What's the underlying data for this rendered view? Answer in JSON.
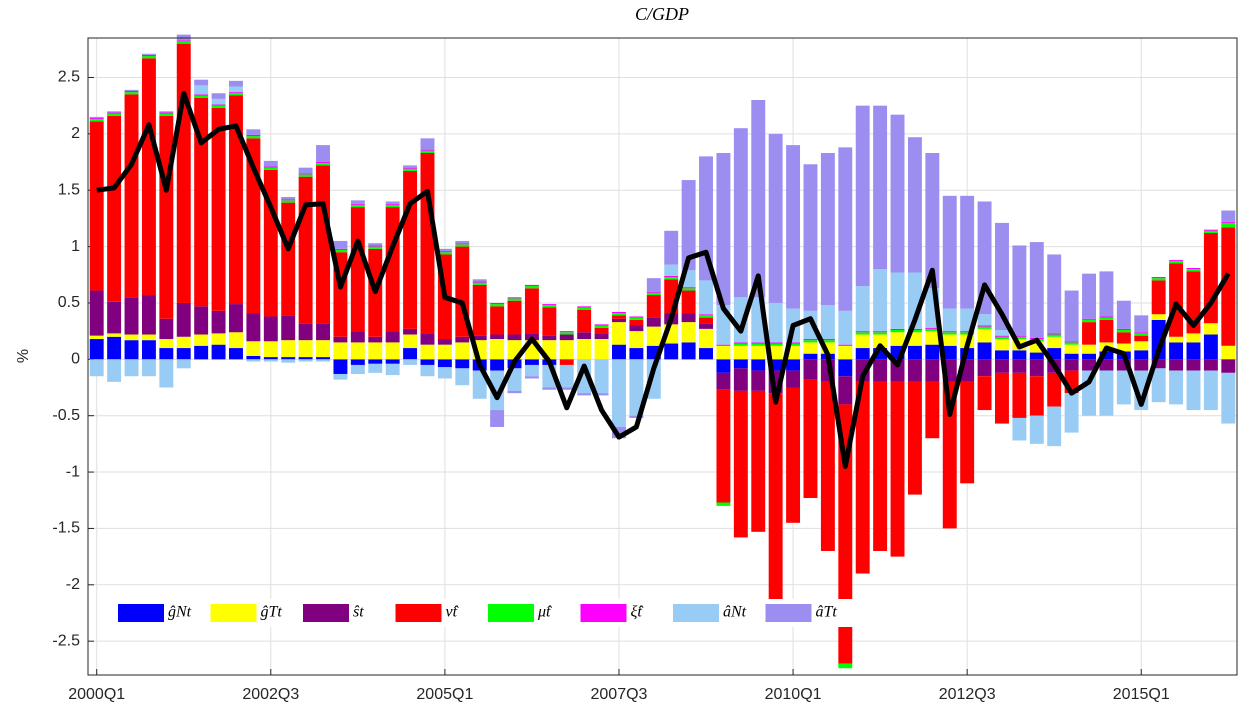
{
  "chart_data": {
    "type": "stacked-bar-line",
    "title": "C/GDP",
    "y_label": "%",
    "categories": [
      "2000Q1",
      null,
      null,
      null,
      null,
      null,
      null,
      null,
      null,
      null,
      "2002Q3",
      null,
      null,
      null,
      null,
      null,
      null,
      null,
      null,
      null,
      "2005Q1",
      null,
      null,
      null,
      null,
      null,
      null,
      null,
      null,
      null,
      "2007Q3",
      null,
      null,
      null,
      null,
      null,
      null,
      null,
      null,
      null,
      "2010Q1",
      null,
      null,
      null,
      null,
      null,
      null,
      null,
      null,
      null,
      "2012Q3",
      null,
      null,
      null,
      null,
      null,
      null,
      null,
      null,
      null,
      "2015Q1",
      null,
      null,
      null,
      null,
      null
    ],
    "ylim": [
      -2.8,
      2.85
    ],
    "yticks": [
      -2.5,
      -2,
      -1.5,
      -1,
      -0.5,
      0,
      0.5,
      1,
      1.5,
      2,
      2.5
    ],
    "grid": true,
    "legend": "lower left",
    "series": [
      {
        "name": "ĝNt",
        "color": "#0000ff",
        "values": [
          0.18,
          0.2,
          0.17,
          0.17,
          0.1,
          0.1,
          0.12,
          0.13,
          0.1,
          0.03,
          0.02,
          0.02,
          0.02,
          0.02,
          -0.13,
          -0.05,
          -0.04,
          -0.04,
          0.1,
          -0.05,
          -0.07,
          -0.08,
          -0.1,
          -0.1,
          -0.08,
          -0.05,
          -0.05,
          0,
          0,
          0,
          0.13,
          0.1,
          0.12,
          0.14,
          0.15,
          0.1,
          -0.12,
          -0.08,
          -0.1,
          -0.1,
          -0.1,
          0.05,
          0.05,
          -0.15,
          0.1,
          0.1,
          0.12,
          0.12,
          0.13,
          0.12,
          0.1,
          0.15,
          0.08,
          0.08,
          0.06,
          0.1,
          0.05,
          0.05,
          0.07,
          0.07,
          0.08,
          0.35,
          0.15,
          0.15,
          0.22,
          0
        ]
      },
      {
        "name": "ĝTt",
        "color": "#ffff00",
        "values": [
          0.03,
          0.03,
          0.05,
          0.05,
          0.08,
          0.1,
          0.1,
          0.1,
          0.14,
          0.13,
          0.14,
          0.15,
          0.15,
          0.15,
          0.15,
          0.15,
          0.15,
          0.15,
          0.12,
          0.13,
          0.13,
          0.15,
          0.17,
          0.18,
          0.17,
          0.17,
          0.17,
          0.17,
          0.18,
          0.18,
          0.2,
          0.15,
          0.17,
          0.17,
          0.18,
          0.17,
          0.12,
          0.12,
          0.12,
          0.12,
          0.12,
          0.1,
          0.1,
          0.12,
          0.12,
          0.12,
          0.12,
          0.12,
          0.12,
          0.1,
          0.12,
          0.12,
          0.1,
          0.1,
          0.1,
          0.1,
          0.08,
          0.08,
          0.08,
          0.07,
          0.08,
          0.05,
          0.05,
          0.08,
          0.1,
          0.12
        ]
      },
      {
        "name": "ŝt",
        "color": "#800080",
        "values": [
          0.4,
          0.28,
          0.33,
          0.35,
          0.18,
          0.3,
          0.25,
          0.2,
          0.25,
          0.25,
          0.22,
          0.22,
          0.15,
          0.15,
          0.05,
          0.1,
          0.05,
          0.1,
          0.05,
          0.1,
          0.05,
          0.05,
          0.04,
          0.04,
          0.05,
          0.06,
          0.04,
          0.05,
          0.06,
          0.05,
          0.03,
          0.05,
          0.08,
          0.1,
          0.08,
          0.05,
          -0.15,
          -0.2,
          -0.18,
          -0.2,
          -0.15,
          -0.18,
          -0.2,
          -0.25,
          -0.2,
          -0.2,
          -0.2,
          -0.2,
          -0.2,
          -0.2,
          -0.2,
          -0.15,
          -0.12,
          -0.12,
          -0.15,
          -0.12,
          -0.1,
          -0.1,
          -0.1,
          -0.1,
          -0.1,
          -0.08,
          -0.1,
          -0.1,
          -0.1,
          -0.12
        ]
      },
      {
        "name": "ν̂t",
        "color": "#ff0000",
        "values": [
          1.5,
          1.65,
          1.8,
          2.1,
          1.8,
          2.3,
          1.85,
          1.8,
          1.85,
          1.55,
          1.3,
          1.0,
          1.3,
          1.4,
          0.75,
          1.1,
          0.78,
          1.1,
          1.4,
          1.6,
          0.75,
          0.8,
          0.45,
          0.25,
          0.3,
          0.4,
          0.25,
          -0.05,
          0.2,
          0.05,
          0.03,
          0.05,
          0.2,
          0.3,
          0.2,
          0.05,
          -1.0,
          -1.3,
          -1.25,
          -1.9,
          -1.2,
          -1.05,
          -1.5,
          -2.3,
          -1.7,
          -1.5,
          -1.55,
          -1.0,
          -0.5,
          -1.3,
          -0.9,
          -0.3,
          -0.45,
          -0.4,
          -0.35,
          -0.3,
          -0.2,
          0.2,
          0.2,
          0.1,
          0.05,
          0.3,
          0.65,
          0.55,
          0.8,
          1.05
        ]
      },
      {
        "name": "μ̂t",
        "color": "#00ff00",
        "values": [
          0.02,
          0.02,
          0.02,
          0.02,
          0.02,
          0.02,
          0.02,
          0.02,
          0.02,
          0.02,
          0.02,
          0.02,
          0.02,
          0.02,
          0.02,
          0.02,
          0.02,
          0.02,
          0.02,
          0.02,
          0.02,
          0.02,
          0.02,
          0.02,
          0.02,
          0.02,
          0.02,
          0.02,
          0.02,
          0.02,
          0.02,
          0.02,
          0.02,
          0.02,
          0.02,
          0.02,
          -0.03,
          0.02,
          0.02,
          0.02,
          0.02,
          0.02,
          0.02,
          -0.04,
          0.02,
          0.02,
          0.02,
          0.02,
          0.02,
          0.02,
          0.02,
          0.02,
          0.02,
          0.02,
          0.02,
          0.02,
          0.02,
          0.02,
          0.02,
          0.02,
          0.02,
          0.02,
          0.02,
          0.02,
          0.02,
          0.04
        ]
      },
      {
        "name": "ξ̂t",
        "color": "#ff00ff",
        "values": [
          0.01,
          0.01,
          0.01,
          0.01,
          0.01,
          0.01,
          0.01,
          0.01,
          0.01,
          0.01,
          0.01,
          0.01,
          0.01,
          0.01,
          0.01,
          0.01,
          0.01,
          0.01,
          0.01,
          0.01,
          0.01,
          0.01,
          0.01,
          0.01,
          0.01,
          0.01,
          0.01,
          0.01,
          0.01,
          0.01,
          0.01,
          0.01,
          0.01,
          0.01,
          0.01,
          0.01,
          0.01,
          0.01,
          0.01,
          0.01,
          0.01,
          0.01,
          0.01,
          0.01,
          0.01,
          0.01,
          0.01,
          0.01,
          0.01,
          0.01,
          0.01,
          0.01,
          0.01,
          0.01,
          0.01,
          0.01,
          0.01,
          0.01,
          0.01,
          0.01,
          0.01,
          0.01,
          0.01,
          0.01,
          0.01,
          0.01
        ]
      },
      {
        "name": "âNt",
        "color": "#99ccf5",
        "values": [
          -0.15,
          -0.2,
          -0.15,
          -0.15,
          -0.25,
          -0.08,
          0.08,
          0.05,
          0.05,
          -0.02,
          -0.02,
          -0.03,
          -0.02,
          -0.02,
          -0.05,
          -0.08,
          -0.08,
          -0.1,
          -0.05,
          -0.1,
          -0.1,
          -0.15,
          -0.25,
          -0.35,
          -0.2,
          -0.1,
          -0.2,
          -0.2,
          -0.3,
          -0.3,
          -0.6,
          -0.5,
          -0.35,
          0.1,
          0.15,
          0.3,
          0.35,
          0.4,
          0.4,
          0.35,
          0.3,
          0.25,
          0.3,
          0.3,
          0.4,
          0.55,
          0.5,
          0.5,
          0.35,
          0.2,
          0.2,
          0.1,
          0.05,
          -0.2,
          -0.25,
          -0.35,
          -0.35,
          -0.4,
          -0.4,
          -0.3,
          -0.35,
          -0.3,
          -0.3,
          -0.35,
          -0.35,
          -0.45
        ]
      },
      {
        "name": "âTt",
        "color": "#9b8ef0",
        "values": [
          0.01,
          0.01,
          0.01,
          0.01,
          0.01,
          0.05,
          0.05,
          0.05,
          0.05,
          0.05,
          0.05,
          0.02,
          0.05,
          0.15,
          0.07,
          0.03,
          0.02,
          0.02,
          0.02,
          0.1,
          0.02,
          0.02,
          0.02,
          -0.15,
          -0.02,
          -0.02,
          -0.02,
          -0.02,
          -0.02,
          -0.02,
          -0.1,
          -0.02,
          0.12,
          0.3,
          0.8,
          1.1,
          1.35,
          1.5,
          1.75,
          1.5,
          1.45,
          1.3,
          1.35,
          1.45,
          1.6,
          1.45,
          1.4,
          1.2,
          1.2,
          1.0,
          1.0,
          1.0,
          0.95,
          0.8,
          0.85,
          0.7,
          0.45,
          0.4,
          0.4,
          0.25,
          0.15,
          0,
          0,
          0,
          0,
          0.1
        ]
      }
    ],
    "total": {
      "color": "#000000",
      "values": [
        1.5,
        1.52,
        1.73,
        2.08,
        1.5,
        2.36,
        1.92,
        2.04,
        2.07,
        1.7,
        1.35,
        0.98,
        1.37,
        1.38,
        0.64,
        1.05,
        0.6,
        1.0,
        1.38,
        1.49,
        0.55,
        0.5,
        -0.05,
        -0.34,
        -0.02,
        0.18,
        -0.02,
        -0.43,
        -0.06,
        -0.45,
        -0.69,
        -0.6,
        -0.08,
        0.36,
        0.9,
        0.95,
        0.45,
        0.25,
        0.74,
        -0.38,
        0.3,
        0.36,
        0.04,
        -0.95,
        -0.15,
        0.12,
        -0.05,
        0.35,
        0.79,
        -0.49,
        0.12,
        0.66,
        0.4,
        0.11,
        0.17,
        -0.05,
        -0.3,
        -0.2,
        0.1,
        0.05,
        -0.4,
        0.08,
        0.49,
        0.3,
        0.5,
        0.76
      ]
    }
  }
}
